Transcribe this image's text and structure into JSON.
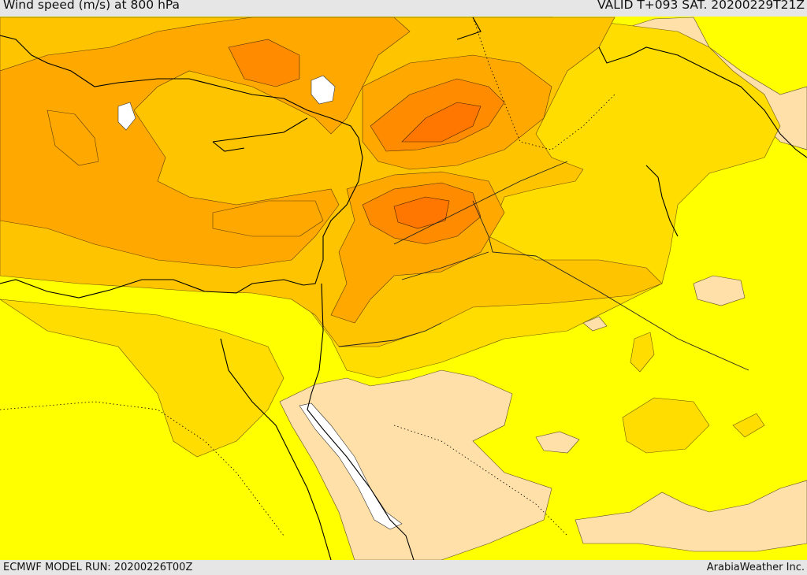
{
  "header": {
    "title": "Wind speed (m/s) at 800 hPa",
    "valid": "VALID T+093 SAT. 20200229T21Z"
  },
  "footer": {
    "model_run": "ECMWF MODEL RUN: 20200226T00Z",
    "credit": "ArabiaWeather Inc."
  },
  "map": {
    "colors": {
      "level_calm": "#ffffff",
      "level_low": "#ffe0a8",
      "level_base": "#ffff00",
      "level_2": "#ffdd00",
      "level_3": "#ffc400",
      "level_4": "#ffa900",
      "level_5": "#ff8c00",
      "level_6": "#ff7700",
      "coastline": "#000000"
    }
  }
}
